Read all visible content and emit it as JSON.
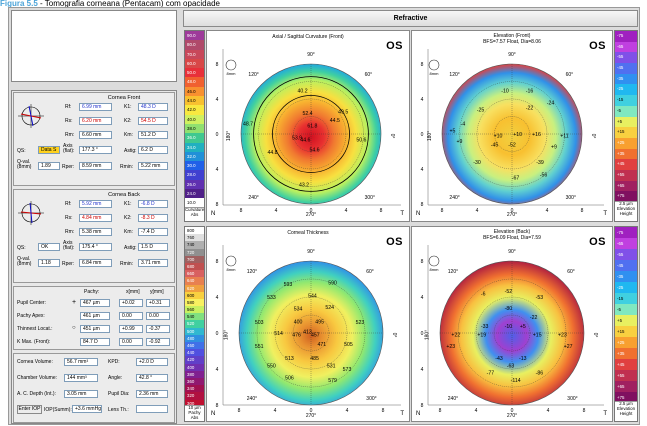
{
  "caption": {
    "figure": "Figura 5.5",
    "text": " - Tomografia corneana (Pentacam) com opacidade"
  },
  "header": {
    "title": "Refractive"
  },
  "front": {
    "title": "Cornea Front",
    "rf": "6.99 mm",
    "rs": "6.20 mm",
    "rm": "6.60 mm",
    "k1": "48.3 D",
    "k2": "54.5 D",
    "km": "51.2 D",
    "qs": "Data S",
    "axis": "177.3 °",
    "astig": "6.2 D",
    "qval": "1.89",
    "rper": "8.59 mm",
    "rmin": "5.22 mm"
  },
  "back": {
    "title": "Cornea Back",
    "rf": "5.92 mm",
    "rs": "4.84 mm",
    "rm": "5.38 mm",
    "k1": "-6.8 D",
    "k2": "-8.3 D",
    "km": "-7.4 D",
    "qs": "OK",
    "axis": "175.4 °",
    "astig": "1.5 D",
    "qval": "1.18",
    "rper": "6.84 mm",
    "rmin": "3.71 mm"
  },
  "labels": {
    "rf": "Rf:",
    "rs": "Rs:",
    "rm": "Rm:",
    "k1": "K1:",
    "k2": "K2:",
    "km": "Km:",
    "qs": "QS:",
    "axis": "Axis (flat):",
    "astig": "Astig:",
    "qval": "Q-val. (8mm)",
    "rper": "Rper:",
    "rmin": "Rmin:",
    "pachy": "Pachy:",
    "x": "x[mm]",
    "y": "y[mm]",
    "pupil": "Pupil Center:",
    "apex": "Pachy Apex:",
    "thin": "Thinnest Locat.:",
    "kmax": "K Max. (Front):",
    "cvol": "Cornea Volume:",
    "kpd": "KPD:",
    "chvol": "Chamber Volume:",
    "angle": "Angle:",
    "acd": "A. C. Depth (Int.):",
    "pupdia": "Pupil Dia:",
    "enter": "Enter IOP",
    "iop": "IOP(Summ):",
    "lens": "Lens Th.:"
  },
  "pachy": {
    "pupil": {
      "p": "467 µm",
      "x": "+0.02",
      "y": "+0.31"
    },
    "apex": {
      "p": "461 µm",
      "x": "0.00",
      "y": "0.00"
    },
    "thin": {
      "p": "451 µm",
      "x": "+0.99",
      "y": "-0.37"
    },
    "kmax": {
      "p": "84.7 D",
      "x": "0.00",
      "y": "-0.92"
    },
    "cvol": "56.7 mm³",
    "kpd": "+2.0 D",
    "chvol": "144 mm³",
    "angle": "42.8 °",
    "acd": "3.05 mm",
    "pupdia": "2.36 mm",
    "iop": "+3.6 mmHg",
    "lens": ""
  },
  "maps": {
    "axial": {
      "title": "Axial / Sagittal Curvature (Front)",
      "os": "OS",
      "values": [
        "40.2",
        "49.5",
        "44.5",
        "52.4",
        "61.8",
        "44.6",
        "54.6",
        "53.9",
        "48.7",
        "43.2",
        "50.6",
        "44.8"
      ]
    },
    "elevf": {
      "title": "Elevation (Front)",
      "subtitle": "BFS=7.57 Float, Dia=8.06",
      "os": "OS",
      "values": [
        "-10",
        "-25",
        "-16",
        "-22",
        "-4",
        "-24",
        "+11",
        "+10",
        "+10",
        "+16",
        "-52",
        "-45",
        "-30",
        "-39",
        "-67",
        "-56",
        "+9",
        "+5",
        "+9"
      ]
    },
    "pachy": {
      "title": "Corneal Thickness",
      "os": "OS",
      "values": [
        "593",
        "590",
        "533",
        "544",
        "534",
        "524",
        "503",
        "400",
        "495",
        "476",
        "457",
        "523",
        "514",
        "413",
        "471",
        "505",
        "551",
        "513",
        "485",
        "550",
        "506",
        "531",
        "573",
        "579"
      ]
    },
    "elevb": {
      "title": "Elevation (Back)",
      "subtitle": "BFS=6.09 Float, Dia=7.59",
      "os": "OS",
      "values": [
        "-6",
        "-52",
        "-53",
        "-80",
        "-22",
        "-33",
        "-10",
        "+5",
        "+22",
        "+19",
        "+15",
        "+23",
        "-43",
        "-13",
        "-63",
        "-77",
        "-114",
        "-86",
        "+23",
        "+27"
      ]
    },
    "compass": {
      "top": "90°",
      "tl": "120°",
      "tr": "60°",
      "left": "180°",
      "right": "0°",
      "bl": "240°",
      "br": "300°",
      "bot": "270°",
      "n": "N",
      "t": "T",
      "scalebtn": "8mm"
    },
    "axis_ticks": [
      "8",
      "4",
      "0",
      "4",
      "8"
    ]
  },
  "scales": {
    "curvature": {
      "values": [
        "90.0",
        "80.0",
        "70.0",
        "60.0",
        "50.0",
        "48.0",
        "46.0",
        "44.0",
        "42.0",
        "40.0",
        "38.0",
        "36.0",
        "34.0",
        "32.0",
        "30.0",
        "28.0",
        "26.0",
        "24.0",
        "10.0"
      ],
      "foot1": "Curvature",
      "foot2": "Abs",
      "colors": [
        "#9e3a9a",
        "#b04a6a",
        "#c8485a",
        "#d84848",
        "#e8303a",
        "#f06030",
        "#f89030",
        "#f8c030",
        "#f8e840",
        "#d0f060",
        "#90e070",
        "#40c890",
        "#20b0c0",
        "#2090d8",
        "#2060e8",
        "#4040d0",
        "#6030b0",
        "#502088",
        "#ffffff"
      ]
    },
    "elevation": {
      "values": [
        "-75",
        "-65",
        "-55",
        "-45",
        "-35",
        "-25",
        "-15",
        "-5",
        "+5",
        "+15",
        "+25",
        "+35",
        "+45",
        "+55",
        "+65",
        "+75"
      ],
      "foot1": "2.5 µm",
      "foot2": "Elevation",
      "foot3": "Height",
      "colors": [
        "#a020c0",
        "#c040e0",
        "#8050e8",
        "#5070f0",
        "#3090f0",
        "#20b8f0",
        "#40d0e0",
        "#80e8c0",
        "#e8f060",
        "#f8d040",
        "#f8a030",
        "#f07030",
        "#e04040",
        "#c03050",
        "#a02060",
        "#801060"
      ]
    },
    "thickness": {
      "values": [
        "800",
        "760",
        "740",
        "720",
        "700",
        "680",
        "660",
        "640",
        "620",
        "600",
        "580",
        "560",
        "540",
        "520",
        "500",
        "480",
        "460",
        "440",
        "420",
        "400",
        "380",
        "360",
        "340",
        "320",
        "300"
      ],
      "foot1": "10 µm",
      "foot2": "Pachy",
      "foot3": "Abs",
      "colors": [
        "#ffffff",
        "#e0e0e0",
        "#b0b0b0",
        "#909090",
        "#a06060",
        "#c05050",
        "#d86060",
        "#e88050",
        "#f0a040",
        "#f8d040",
        "#f8f060",
        "#c8f060",
        "#80e080",
        "#40d0a0",
        "#30b8d0",
        "#3090e0",
        "#4070e8",
        "#5050e0",
        "#6040c8",
        "#7030b0",
        "#802090",
        "#901870",
        "#a01050",
        "#b01040",
        "#c01030"
      ]
    }
  }
}
